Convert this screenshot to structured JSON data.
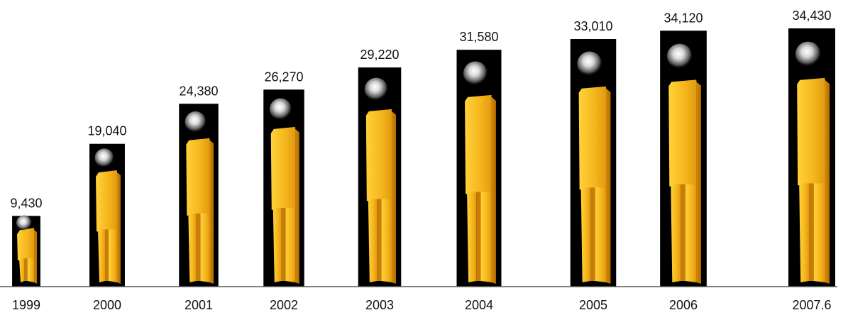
{
  "chart_data": {
    "type": "bar",
    "bar_style": "pictograph-person",
    "categories": [
      "1999",
      "2000",
      "2001",
      "2002",
      "2003",
      "2004",
      "2005",
      "2006",
      "2007.6"
    ],
    "values": [
      9430,
      19040,
      24380,
      26270,
      29220,
      31580,
      33010,
      34120,
      34430
    ],
    "value_labels": [
      "9,430",
      "19,040",
      "24,380",
      "26,270",
      "29,220",
      "31,580",
      "33,010",
      "34,120",
      "34,430"
    ],
    "title": "",
    "xlabel": "",
    "ylabel": "",
    "grid": false,
    "legend": "none",
    "colors": {
      "bar_background": "#000000",
      "figure_body": "#f5b51c",
      "figure_shadow": "#c97d06",
      "figure_highlight": "#ffd84a",
      "head_glow": "#ffffff",
      "axis_line": "#555555"
    }
  }
}
